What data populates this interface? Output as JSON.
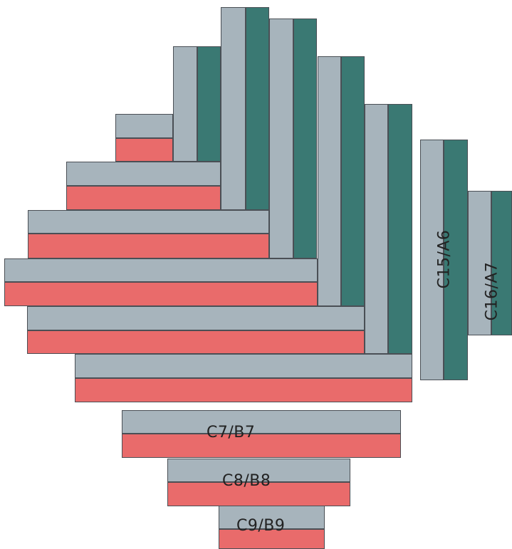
{
  "colors": {
    "gray": "#a7b4bc",
    "red": "#e96b6b",
    "teal": "#3a7973"
  },
  "labels": {
    "c15_a6": "C15/A6",
    "c16_a7": "C16/A7",
    "c7_b7": "C7/B7",
    "c8_b8": "C8/B8",
    "c9_b9": "C9/B9"
  }
}
